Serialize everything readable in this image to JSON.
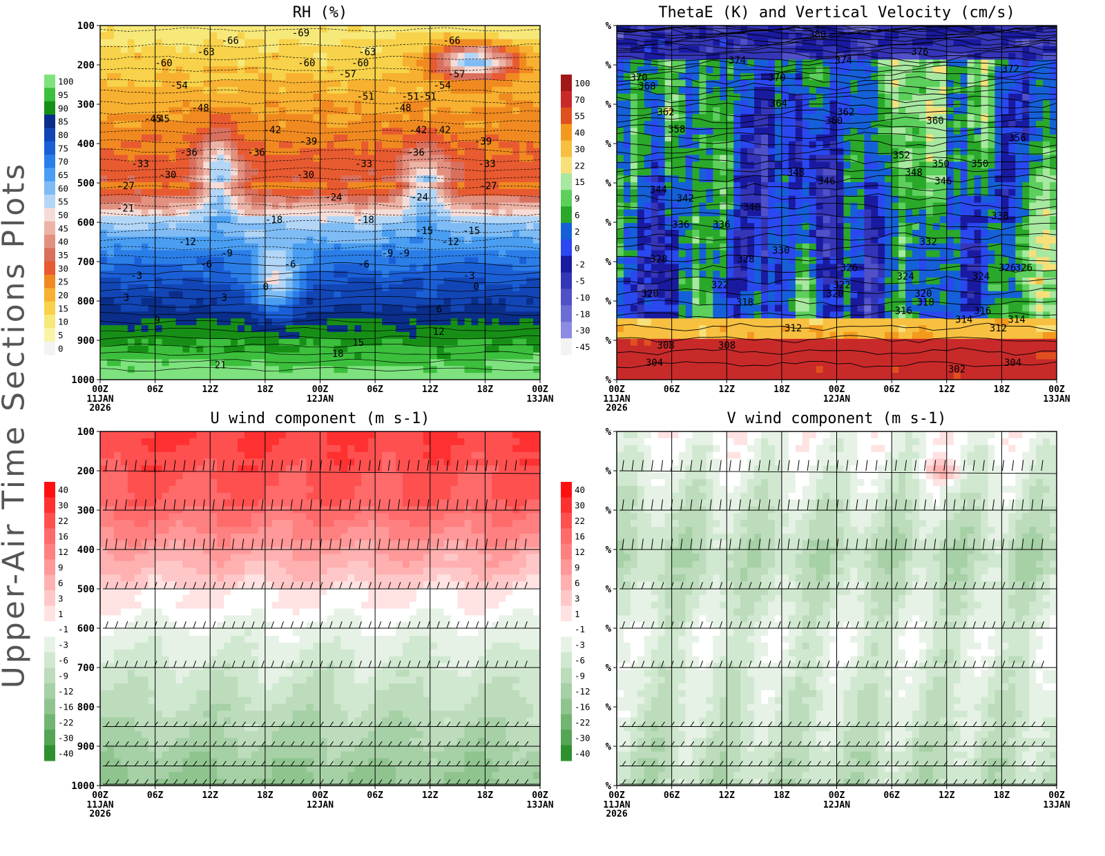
{
  "page_title": "Upper-Air Time Sections Plots",
  "chart_data": [
    {
      "type": "heatmap",
      "title": "RH (%)",
      "xlabel": "",
      "ylabel": "",
      "x_ticks": [
        "00Z",
        "06Z",
        "12Z",
        "18Z",
        "00Z",
        "06Z",
        "12Z",
        "18Z",
        "00Z"
      ],
      "x_dates": [
        [
          "11JAN",
          "2026"
        ],
        [],
        [],
        [],
        [
          "12JAN"
        ],
        [],
        [],
        [],
        [
          "13JAN"
        ]
      ],
      "y_ticks": [
        "100",
        "200",
        "300",
        "400",
        "500",
        "600",
        "700",
        "800",
        "900",
        "1000"
      ],
      "y_levels_hpa": [
        100,
        200,
        300,
        400,
        500,
        600,
        700,
        800,
        900,
        1000
      ],
      "colorbar_levels": [
        "100",
        "95",
        "90",
        "85",
        "80",
        "75",
        "70",
        "65",
        "60",
        "55",
        "50",
        "45",
        "40",
        "35",
        "30",
        "25",
        "20",
        "15",
        "10",
        "5",
        "0"
      ],
      "colorbar_colors": [
        "#7ee27e",
        "#3cbf3c",
        "#178f17",
        "#0a2e8a",
        "#1245b5",
        "#1b5fd6",
        "#2b7ee8",
        "#4a9ef2",
        "#7fbcf5",
        "#b3d6f7",
        "#f6dcd6",
        "#ecb4a6",
        "#e29080",
        "#d9705e",
        "#e85a30",
        "#f08a20",
        "#f7b030",
        "#f7d24a",
        "#f7e87a",
        "#faf3a8",
        "#f3f3f3"
      ],
      "contour_labels": [
        "-69",
        "-63",
        "-66",
        "-63",
        "-66",
        "-60",
        "-57",
        "-60",
        "-57",
        "-60",
        "-51",
        "-54",
        "-51",
        "-54",
        "-51",
        "-48",
        "-48",
        "-42",
        "-45",
        "-42",
        "-45",
        "-39",
        "-42",
        "-33",
        "-36",
        "-39",
        "-33",
        "-36",
        "-33",
        "-36",
        "-30",
        "-30",
        "-27",
        "-27",
        "-24",
        "-24",
        "-21",
        "-18",
        "-18",
        "-15",
        "-15",
        "-12",
        "-12",
        "-9",
        "-9",
        "-9",
        "-6",
        "-6",
        "-6",
        "-3",
        "-3",
        "0",
        "0",
        "3",
        "3",
        "6",
        "9",
        "12",
        "15",
        "18",
        "21"
      ],
      "panel_position": "top-left"
    },
    {
      "type": "heatmap",
      "title": "ThetaE (K) and Vertical Velocity (cm/s)",
      "x_ticks": [
        "00Z",
        "06Z",
        "12Z",
        "18Z",
        "00Z",
        "06Z",
        "12Z",
        "18Z",
        "00Z"
      ],
      "x_dates": [
        [
          "11JAN",
          "2026"
        ],
        [],
        [],
        [],
        [
          "12JAN"
        ],
        [],
        [],
        [],
        [
          "13JAN"
        ]
      ],
      "y_ticks": [
        "%",
        "%",
        "%",
        "%",
        "%",
        "%",
        "%",
        "%",
        "%",
        "%"
      ],
      "colorbar_levels": [
        "100",
        "70",
        "55",
        "40",
        "30",
        "22",
        "15",
        "9",
        "6",
        "2",
        "0",
        "-2",
        "-5",
        "-10",
        "-18",
        "-30",
        "-45"
      ],
      "colorbar_colors": [
        "#a01818",
        "#c82a2a",
        "#e0501e",
        "#f39a1e",
        "#f7c040",
        "#f7e07a",
        "#a8e8a0",
        "#5ccf5c",
        "#2aa82a",
        "#1560d8",
        "#2a48f0",
        "#1a1aa0",
        "#3535b8",
        "#5050c8",
        "#6c6cd6",
        "#8c8ce4",
        "#f3f3f3"
      ],
      "contour_labels": [
        "380",
        "376",
        "374",
        "374",
        "372",
        "370",
        "370",
        "368",
        "364",
        "362",
        "362",
        "360",
        "360",
        "358",
        "356",
        "352",
        "350",
        "350",
        "348",
        "348",
        "346",
        "346",
        "344",
        "342",
        "340",
        "338",
        "336",
        "336",
        "332",
        "330",
        "328",
        "328",
        "326",
        "326",
        "326",
        "324",
        "324",
        "322",
        "322",
        "320",
        "320",
        "320",
        "318",
        "318",
        "316",
        "316",
        "314",
        "314",
        "312",
        "312",
        "308",
        "308",
        "304",
        "304",
        "302"
      ],
      "panel_position": "top-right"
    },
    {
      "type": "heatmap",
      "title": "U wind component (m s-1)",
      "x_ticks": [
        "00Z",
        "06Z",
        "12Z",
        "18Z",
        "00Z",
        "06Z",
        "12Z",
        "18Z",
        "00Z"
      ],
      "x_dates": [
        [
          "11JAN",
          "2026"
        ],
        [],
        [],
        [],
        [
          "12JAN"
        ],
        [],
        [],
        [],
        [
          "13JAN"
        ]
      ],
      "y_ticks": [
        "100",
        "200",
        "300",
        "400",
        "500",
        "600",
        "700",
        "800",
        "900",
        "1000"
      ],
      "colorbar_levels": [
        "40",
        "30",
        "22",
        "16",
        "12",
        "9",
        "6",
        "3",
        "1",
        "-1",
        "-3",
        "-6",
        "-9",
        "-12",
        "-16",
        "-22",
        "-30",
        "-40"
      ],
      "colorbar_colors": [
        "#ff1010",
        "#ff3030",
        "#ff5050",
        "#ff6a6a",
        "#ff8080",
        "#ff9898",
        "#ffb0b0",
        "#ffc8c8",
        "#ffe2e2",
        "#ffffff",
        "#e6f2e6",
        "#d0e8d0",
        "#bcdcbc",
        "#a6d0a6",
        "#8fc48f",
        "#72b472",
        "#56a456",
        "#2e902e"
      ],
      "wind_barb_levels_hpa": [
        200,
        300,
        400,
        500,
        600,
        700,
        850,
        900,
        950,
        1000
      ],
      "panel_position": "bottom-left"
    },
    {
      "type": "heatmap",
      "title": "V wind component (m s-1)",
      "x_ticks": [
        "00Z",
        "06Z",
        "12Z",
        "18Z",
        "00Z",
        "06Z",
        "12Z",
        "18Z",
        "00Z"
      ],
      "x_dates": [
        [
          "11JAN",
          "2026"
        ],
        [],
        [],
        [],
        [
          "12JAN"
        ],
        [],
        [],
        [],
        [
          "13JAN"
        ]
      ],
      "y_ticks": [
        "%",
        "%",
        "%",
        "%",
        "%",
        "%",
        "%",
        "%",
        "%",
        "%"
      ],
      "colorbar_levels": [
        "40",
        "30",
        "22",
        "16",
        "12",
        "9",
        "6",
        "3",
        "1",
        "-1",
        "-3",
        "-6",
        "-9",
        "-12",
        "-16",
        "-22",
        "-30",
        "-40"
      ],
      "colorbar_colors": [
        "#ff1010",
        "#ff3030",
        "#ff5050",
        "#ff6a6a",
        "#ff8080",
        "#ff9898",
        "#ffb0b0",
        "#ffc8c8",
        "#ffe2e2",
        "#ffffff",
        "#e6f2e6",
        "#d0e8d0",
        "#bcdcbc",
        "#a6d0a6",
        "#8fc48f",
        "#72b472",
        "#56a456",
        "#2e902e"
      ],
      "wind_barb_levels_hpa": [
        200,
        300,
        400,
        500,
        600,
        700,
        850,
        900,
        950,
        1000
      ],
      "panel_position": "bottom-right"
    }
  ]
}
